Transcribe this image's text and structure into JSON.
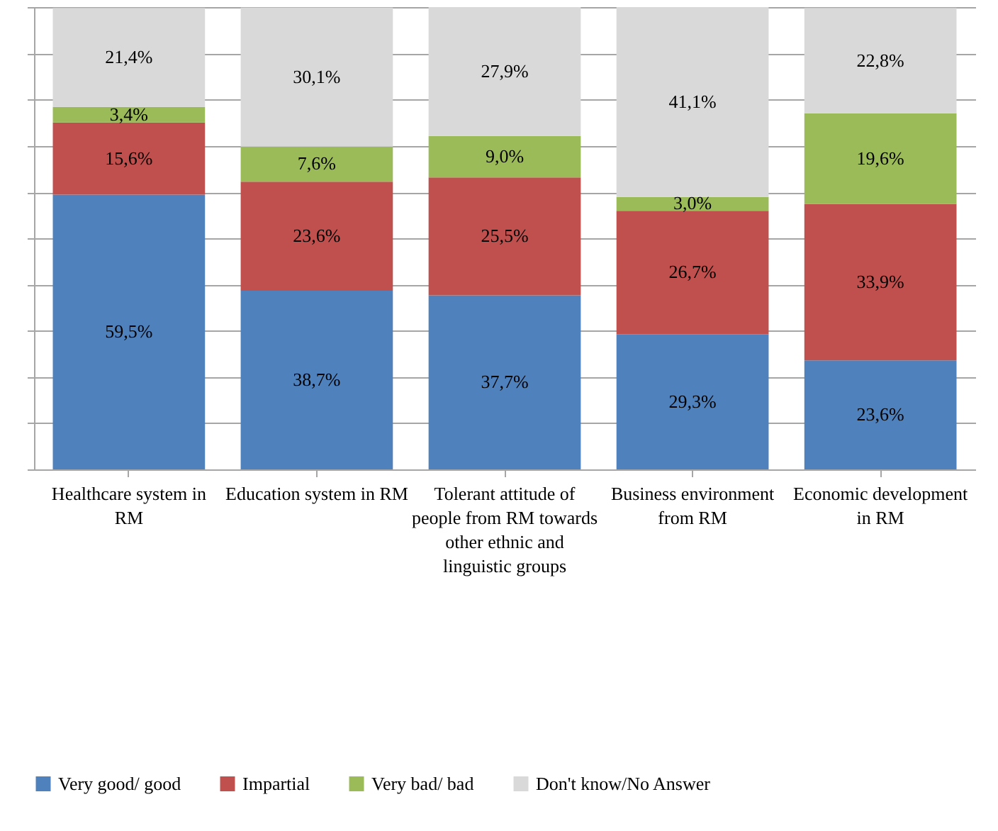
{
  "chart_data": {
    "type": "bar",
    "stacked": true,
    "categories": [
      "Healthcare system in RM",
      "Education system in RM",
      "Tolerant attitude of people from RM towards other ethnic and linguistic groups",
      "Business environment from RM",
      "Economic development in RM"
    ],
    "series": [
      {
        "name": "Very good/ good",
        "color": "#4f81bd",
        "values": [
          59.5,
          38.7,
          37.7,
          29.3,
          23.6
        ],
        "value_labels": [
          "59,5%",
          "38,7%",
          "37,7%",
          "29,3%",
          "23,6%"
        ]
      },
      {
        "name": "Impartial",
        "color": "#c0504d",
        "values": [
          15.6,
          23.6,
          25.5,
          26.7,
          33.9
        ],
        "value_labels": [
          "15,6%",
          "23,6%",
          "25,5%",
          "26,7%",
          "33,9%"
        ]
      },
      {
        "name": "Very bad/ bad",
        "color": "#9bbb59",
        "values": [
          3.4,
          7.6,
          9.0,
          3.0,
          19.6
        ],
        "value_labels": [
          "3,4%",
          "7,6%",
          "9,0%",
          "3,0%",
          "19,6%"
        ]
      },
      {
        "name": "Don't know/No Answer",
        "color": "#d9d9d9",
        "values": [
          21.4,
          30.1,
          27.9,
          41.1,
          22.8
        ],
        "value_labels": [
          "21,4%",
          "30,1%",
          "27,9%",
          "41,1%",
          "22,8%"
        ]
      }
    ],
    "ylim": [
      0,
      100.1
    ],
    "yticks": [
      {
        "value": 0,
        "label": null
      },
      {
        "value": 10,
        "label": null
      },
      {
        "value": 20,
        "label": null
      },
      {
        "value": 30,
        "label": null
      },
      {
        "value": 40,
        "label": null
      },
      {
        "value": 50,
        "label": null
      },
      {
        "value": 60,
        "label": null
      },
      {
        "value": 70,
        "label": null
      },
      {
        "value": 80,
        "label": null
      },
      {
        "value": 90,
        "label": null
      },
      {
        "value": 100,
        "label": null
      }
    ],
    "tick_labels": "x",
    "grid": "y",
    "legend": "bottom"
  }
}
